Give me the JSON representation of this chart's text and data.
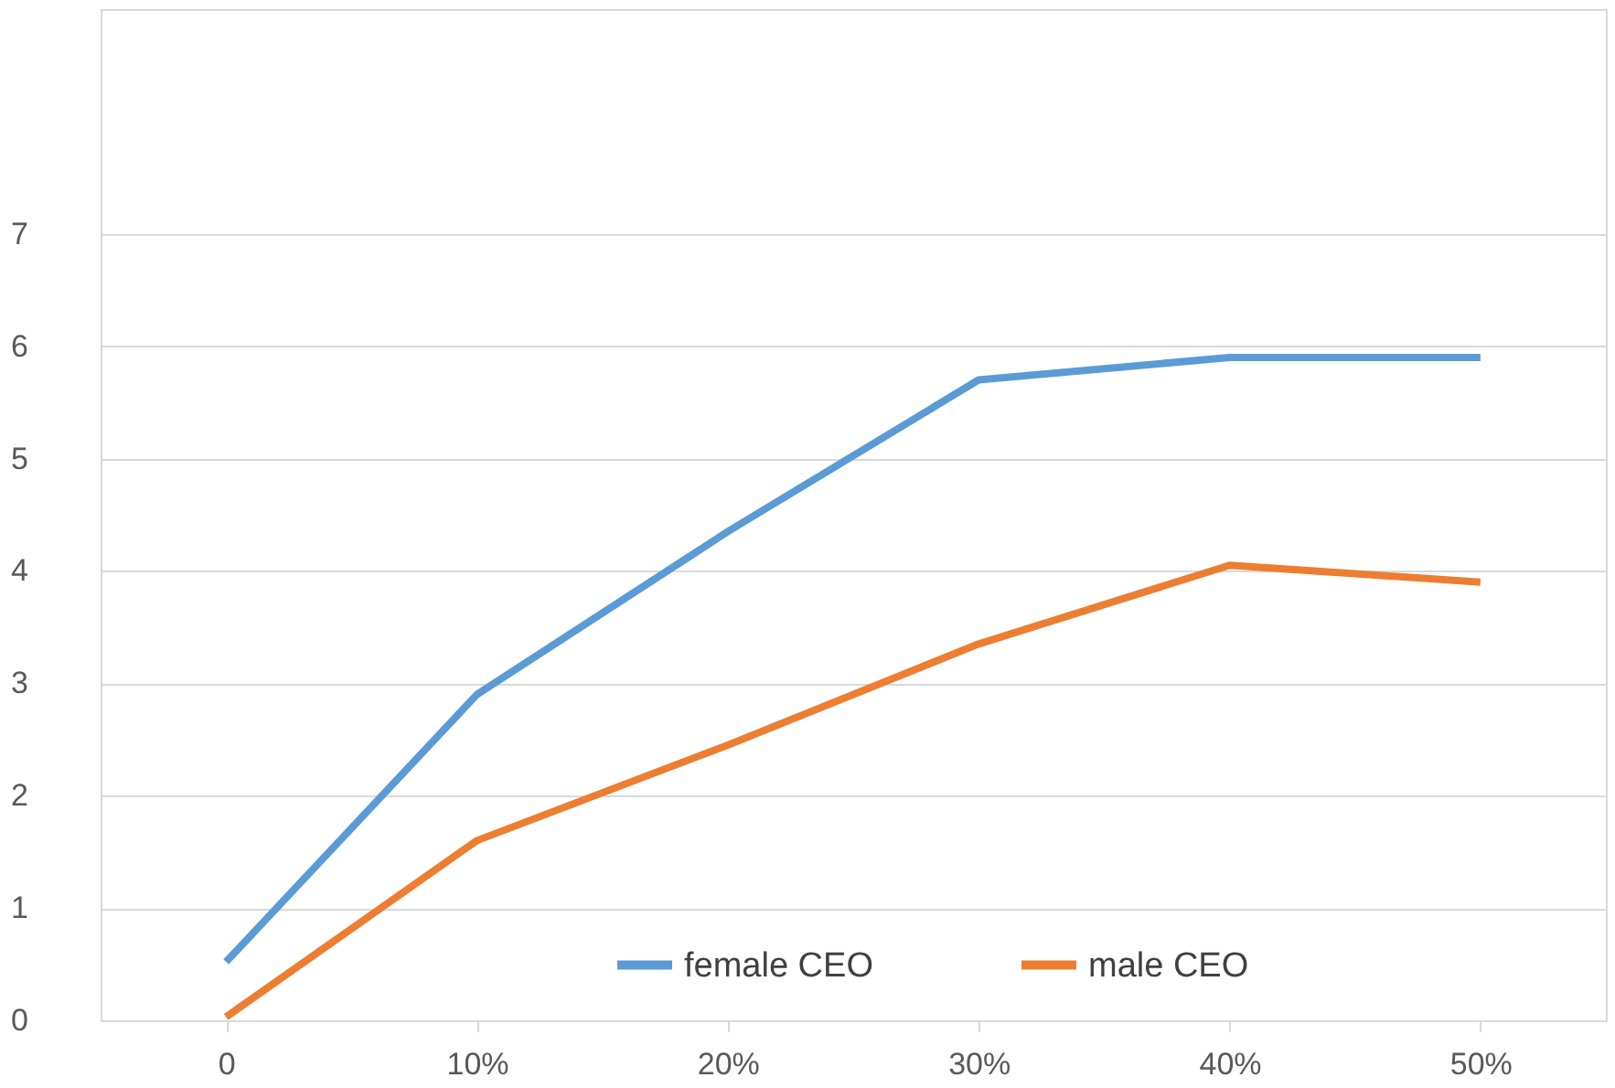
{
  "chart_data": {
    "type": "line",
    "categories": [
      "0",
      "10%",
      "20%",
      "30%",
      "40%",
      "50%"
    ],
    "series": [
      {
        "name": "female CEO",
        "color": "#5b9bd5",
        "values": [
          0.52,
          2.9,
          4.35,
          5.7,
          5.9,
          5.9
        ]
      },
      {
        "name": "male CEO",
        "color": "#ed7d31",
        "values": [
          0.03,
          1.6,
          2.45,
          3.35,
          4.05,
          3.9
        ]
      }
    ],
    "ylim": [
      0,
      9
    ],
    "yticks": [
      0,
      1,
      2,
      3,
      4,
      5,
      6,
      7
    ],
    "grid": "y",
    "legend": "bottom",
    "marker": "none",
    "line_style": "solid"
  }
}
